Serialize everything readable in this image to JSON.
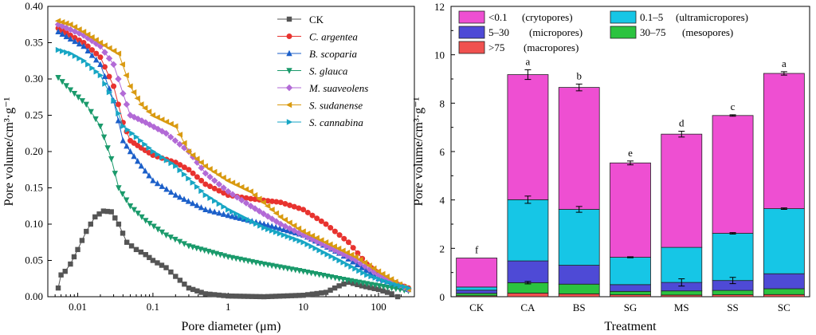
{
  "chart_data": [
    {
      "type": "line",
      "xlabel": "Pore diameter (μm)",
      "ylabel": "Pore volume/cm³·g⁻¹",
      "xscale": "log",
      "xlim": [
        0.004,
        300
      ],
      "ylim": [
        0,
        0.4
      ],
      "x_ticks": [
        "0.01",
        "0.1",
        "1",
        "10",
        "100"
      ],
      "y_ticks": [
        "0.00",
        "0.05",
        "0.10",
        "0.15",
        "0.20",
        "0.25",
        "0.30",
        "0.35",
        "0.40"
      ],
      "legend_position": "top-right",
      "series": [
        {
          "name": "CK",
          "italic": false,
          "color": "#555555",
          "marker": "square",
          "points": [
            [
              0.0055,
              0.012
            ],
            [
              0.006,
              0.03
            ],
            [
              0.0068,
              0.035
            ],
            [
              0.008,
              0.045
            ],
            [
              0.01,
              0.065
            ],
            [
              0.013,
              0.09
            ],
            [
              0.017,
              0.11
            ],
            [
              0.022,
              0.118
            ],
            [
              0.028,
              0.117
            ],
            [
              0.035,
              0.1
            ],
            [
              0.045,
              0.075
            ],
            [
              0.06,
              0.065
            ],
            [
              0.08,
              0.058
            ],
            [
              0.1,
              0.05
            ],
            [
              0.15,
              0.04
            ],
            [
              0.2,
              0.028
            ],
            [
              0.3,
              0.012
            ],
            [
              0.5,
              0.004
            ],
            [
              1,
              0.001
            ],
            [
              3,
              0.0
            ],
            [
              10,
              0.002
            ],
            [
              20,
              0.006
            ],
            [
              30,
              0.015
            ],
            [
              40,
              0.02
            ],
            [
              60,
              0.015
            ],
            [
              100,
              0.01
            ],
            [
              150,
              0.004
            ],
            [
              180,
              0.0
            ]
          ]
        },
        {
          "name": "C. argentea",
          "italic": true,
          "color": "#e8332f",
          "marker": "circle",
          "points": [
            [
              0.0055,
              0.37
            ],
            [
              0.008,
              0.36
            ],
            [
              0.012,
              0.35
            ],
            [
              0.02,
              0.33
            ],
            [
              0.03,
              0.29
            ],
            [
              0.04,
              0.24
            ],
            [
              0.05,
              0.215
            ],
            [
              0.07,
              0.205
            ],
            [
              0.1,
              0.195
            ],
            [
              0.2,
              0.185
            ],
            [
              0.3,
              0.175
            ],
            [
              0.5,
              0.155
            ],
            [
              1,
              0.14
            ],
            [
              2,
              0.135
            ],
            [
              5,
              0.13
            ],
            [
              10,
              0.12
            ],
            [
              20,
              0.1
            ],
            [
              40,
              0.075
            ],
            [
              70,
              0.045
            ],
            [
              120,
              0.025
            ],
            [
              250,
              0.012
            ]
          ]
        },
        {
          "name": "B. scoparia",
          "italic": true,
          "color": "#1b5fc9",
          "marker": "triangle-up",
          "points": [
            [
              0.0055,
              0.365
            ],
            [
              0.008,
              0.355
            ],
            [
              0.012,
              0.345
            ],
            [
              0.02,
              0.32
            ],
            [
              0.03,
              0.27
            ],
            [
              0.04,
              0.215
            ],
            [
              0.05,
              0.2
            ],
            [
              0.07,
              0.18
            ],
            [
              0.1,
              0.16
            ],
            [
              0.2,
              0.14
            ],
            [
              0.5,
              0.12
            ],
            [
              1,
              0.112
            ],
            [
              3,
              0.1
            ],
            [
              10,
              0.085
            ],
            [
              30,
              0.06
            ],
            [
              60,
              0.04
            ],
            [
              100,
              0.025
            ],
            [
              250,
              0.01
            ]
          ]
        },
        {
          "name": "S. glauca",
          "italic": true,
          "color": "#1a9a6b",
          "marker": "triangle-down",
          "points": [
            [
              0.0055,
              0.302
            ],
            [
              0.008,
              0.285
            ],
            [
              0.013,
              0.265
            ],
            [
              0.02,
              0.235
            ],
            [
              0.028,
              0.19
            ],
            [
              0.035,
              0.15
            ],
            [
              0.05,
              0.125
            ],
            [
              0.08,
              0.105
            ],
            [
              0.15,
              0.085
            ],
            [
              0.3,
              0.07
            ],
            [
              1,
              0.055
            ],
            [
              3,
              0.045
            ],
            [
              10,
              0.035
            ],
            [
              30,
              0.025
            ],
            [
              70,
              0.018
            ],
            [
              150,
              0.012
            ],
            [
              250,
              0.008
            ]
          ]
        },
        {
          "name": "M. suaveolens",
          "italic": true,
          "color": "#b26ad6",
          "marker": "diamond",
          "points": [
            [
              0.0055,
              0.375
            ],
            [
              0.008,
              0.368
            ],
            [
              0.012,
              0.36
            ],
            [
              0.02,
              0.345
            ],
            [
              0.03,
              0.32
            ],
            [
              0.04,
              0.28
            ],
            [
              0.05,
              0.25
            ],
            [
              0.08,
              0.24
            ],
            [
              0.15,
              0.225
            ],
            [
              0.3,
              0.2
            ],
            [
              0.5,
              0.17
            ],
            [
              1,
              0.145
            ],
            [
              2,
              0.125
            ],
            [
              5,
              0.1
            ],
            [
              10,
              0.085
            ],
            [
              20,
              0.07
            ],
            [
              50,
              0.05
            ],
            [
              100,
              0.03
            ],
            [
              250,
              0.01
            ]
          ]
        },
        {
          "name": "S. sudanense",
          "italic": true,
          "color": "#d99a10",
          "marker": "triangle-left",
          "points": [
            [
              0.0055,
              0.38
            ],
            [
              0.008,
              0.375
            ],
            [
              0.012,
              0.365
            ],
            [
              0.02,
              0.35
            ],
            [
              0.035,
              0.335
            ],
            [
              0.05,
              0.29
            ],
            [
              0.07,
              0.265
            ],
            [
              0.1,
              0.25
            ],
            [
              0.2,
              0.235
            ],
            [
              0.3,
              0.2
            ],
            [
              0.5,
              0.18
            ],
            [
              1,
              0.16
            ],
            [
              2,
              0.145
            ],
            [
              5,
              0.11
            ],
            [
              10,
              0.09
            ],
            [
              20,
              0.075
            ],
            [
              50,
              0.055
            ],
            [
              100,
              0.035
            ],
            [
              250,
              0.01
            ]
          ]
        },
        {
          "name": "S. cannabina",
          "italic": true,
          "color": "#17a6c4",
          "marker": "triangle-right",
          "points": [
            [
              0.0055,
              0.34
            ],
            [
              0.008,
              0.335
            ],
            [
              0.012,
              0.325
            ],
            [
              0.02,
              0.305
            ],
            [
              0.03,
              0.27
            ],
            [
              0.04,
              0.235
            ],
            [
              0.06,
              0.22
            ],
            [
              0.1,
              0.2
            ],
            [
              0.2,
              0.18
            ],
            [
              0.5,
              0.14
            ],
            [
              1,
              0.12
            ],
            [
              3,
              0.095
            ],
            [
              10,
              0.075
            ],
            [
              30,
              0.05
            ],
            [
              70,
              0.03
            ],
            [
              150,
              0.018
            ],
            [
              250,
              0.012
            ]
          ]
        }
      ]
    },
    {
      "type": "bar",
      "stacked": true,
      "xlabel": "Treatment",
      "ylabel": "Pore volume/cm³·g⁻¹",
      "ylim": [
        0,
        12
      ],
      "y_ticks": [
        "0",
        "2",
        "4",
        "6",
        "8",
        "10",
        "12"
      ],
      "legend_position": "top-left",
      "categories": [
        "CK",
        "CA",
        "BS",
        "SG",
        "MS",
        "SS",
        "SC"
      ],
      "significance_letters": [
        "f",
        "a",
        "b",
        "e",
        "d",
        "c",
        "a"
      ],
      "series": [
        {
          "name": ">75",
          "desc": "(macropores)",
          "color": "#f0514f",
          "values": [
            0.04,
            0.15,
            0.12,
            0.08,
            0.07,
            0.08,
            0.09
          ]
        },
        {
          "name": "30–75",
          "desc": "(mesopores)",
          "color": "#2bc33f",
          "values": [
            0.1,
            0.43,
            0.4,
            0.14,
            0.17,
            0.18,
            0.24
          ]
        },
        {
          "name": "5–30",
          "desc": "(micropores)",
          "color": "#4e4ad6",
          "values": [
            0.13,
            0.9,
            0.78,
            0.28,
            0.35,
            0.41,
            0.62
          ]
        },
        {
          "name": "0.1–5",
          "desc": "(ultramicropores)",
          "color": "#16c6e6",
          "values": [
            0.13,
            2.53,
            2.31,
            1.13,
            1.45,
            1.95,
            2.69
          ]
        },
        {
          "name": "<0.1",
          "desc": "(crytopores)",
          "color": "#ee4fd2",
          "values": [
            1.2,
            5.17,
            5.04,
            3.9,
            4.68,
            4.87,
            5.59
          ]
        }
      ],
      "error_bars": {
        "total": [
          0.0,
          0.2,
          0.14,
          0.08,
          0.12,
          0.03,
          0.07
        ],
        "ultramicro_top": [
          0.0,
          0.15,
          0.12,
          0.02,
          0.0,
          0.03,
          0.03
        ],
        "micro_top": [
          0.0,
          0.0,
          0.0,
          0.0,
          0.15,
          0.13,
          0.0
        ],
        "meso_top": [
          0.0,
          0.05,
          0.0,
          0.0,
          0.0,
          0.0,
          0.0
        ]
      }
    }
  ]
}
